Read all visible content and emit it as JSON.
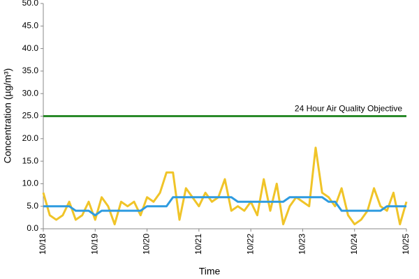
{
  "chart_data": {
    "type": "line",
    "x_label": "Time",
    "y_label": "Concentration (µg/m³)",
    "x": [
      0,
      0.125,
      0.25,
      0.375,
      0.5,
      0.625,
      0.75,
      0.875,
      1,
      1.125,
      1.25,
      1.375,
      1.5,
      1.625,
      1.75,
      1.875,
      2,
      2.125,
      2.25,
      2.375,
      2.5,
      2.625,
      2.75,
      2.875,
      3,
      3.125,
      3.25,
      3.375,
      3.5,
      3.625,
      3.75,
      3.875,
      4,
      4.125,
      4.25,
      4.375,
      4.5,
      4.625,
      4.75,
      4.875,
      5,
      5.125,
      5.25,
      5.375,
      5.5,
      5.625,
      5.75,
      5.875,
      6,
      6.125,
      6.25,
      6.375,
      6.5,
      6.625,
      6.75,
      6.875,
      7
    ],
    "xlim": [
      0,
      7
    ],
    "xticks": [
      {
        "value": 0,
        "label": "10/18"
      },
      {
        "value": 1,
        "label": "10/19"
      },
      {
        "value": 2,
        "label": "10/20"
      },
      {
        "value": 3,
        "label": "10/21"
      },
      {
        "value": 4,
        "label": "10/22"
      },
      {
        "value": 5,
        "label": "10/23"
      },
      {
        "value": 6,
        "label": "10/24"
      },
      {
        "value": 7,
        "label": "10/25"
      }
    ],
    "ylim": [
      0,
      50
    ],
    "yticks": [
      {
        "value": 0,
        "label": "0.0"
      },
      {
        "value": 5,
        "label": "5.0"
      },
      {
        "value": 10,
        "label": "10.0"
      },
      {
        "value": 15,
        "label": "15.0"
      },
      {
        "value": 20,
        "label": "20.0"
      },
      {
        "value": 25,
        "label": "25.0"
      },
      {
        "value": 30,
        "label": "30.0"
      },
      {
        "value": 35,
        "label": "35.0"
      },
      {
        "value": 40,
        "label": "40.0"
      },
      {
        "value": 45,
        "label": "45.0"
      },
      {
        "value": 50,
        "label": "50.0"
      }
    ],
    "series": [
      {
        "color": "#f0c428",
        "values": [
          8,
          3,
          2,
          3,
          6,
          2,
          3,
          6,
          2,
          7,
          5,
          1,
          6,
          5,
          6,
          3,
          7,
          6,
          8,
          12.5,
          12.5,
          2,
          9,
          7,
          5,
          8,
          6,
          7,
          11,
          4,
          5,
          4,
          6,
          3,
          11,
          4,
          10,
          1,
          5,
          7,
          6,
          5,
          18,
          8,
          7,
          5,
          9,
          3,
          1,
          2,
          4,
          9,
          5,
          4,
          8,
          1,
          6
        ]
      },
      {
        "color": "#2e9be0",
        "values": [
          5,
          5,
          5,
          5,
          5,
          4,
          4,
          4,
          3,
          4,
          4,
          4,
          4,
          4,
          4,
          4,
          5,
          5,
          5,
          5,
          7,
          7,
          7,
          7,
          7,
          7,
          7,
          7,
          7,
          7,
          6,
          6,
          6,
          6,
          6,
          6,
          6,
          6,
          7,
          7,
          7,
          7,
          7,
          7,
          6,
          6,
          4,
          4,
          4,
          4,
          4,
          4,
          4,
          5,
          5,
          5,
          5
        ]
      }
    ],
    "reference_line": {
      "value": 25,
      "label": "24 Hour Air Quality Objective",
      "color": "#2a8a2a"
    }
  }
}
